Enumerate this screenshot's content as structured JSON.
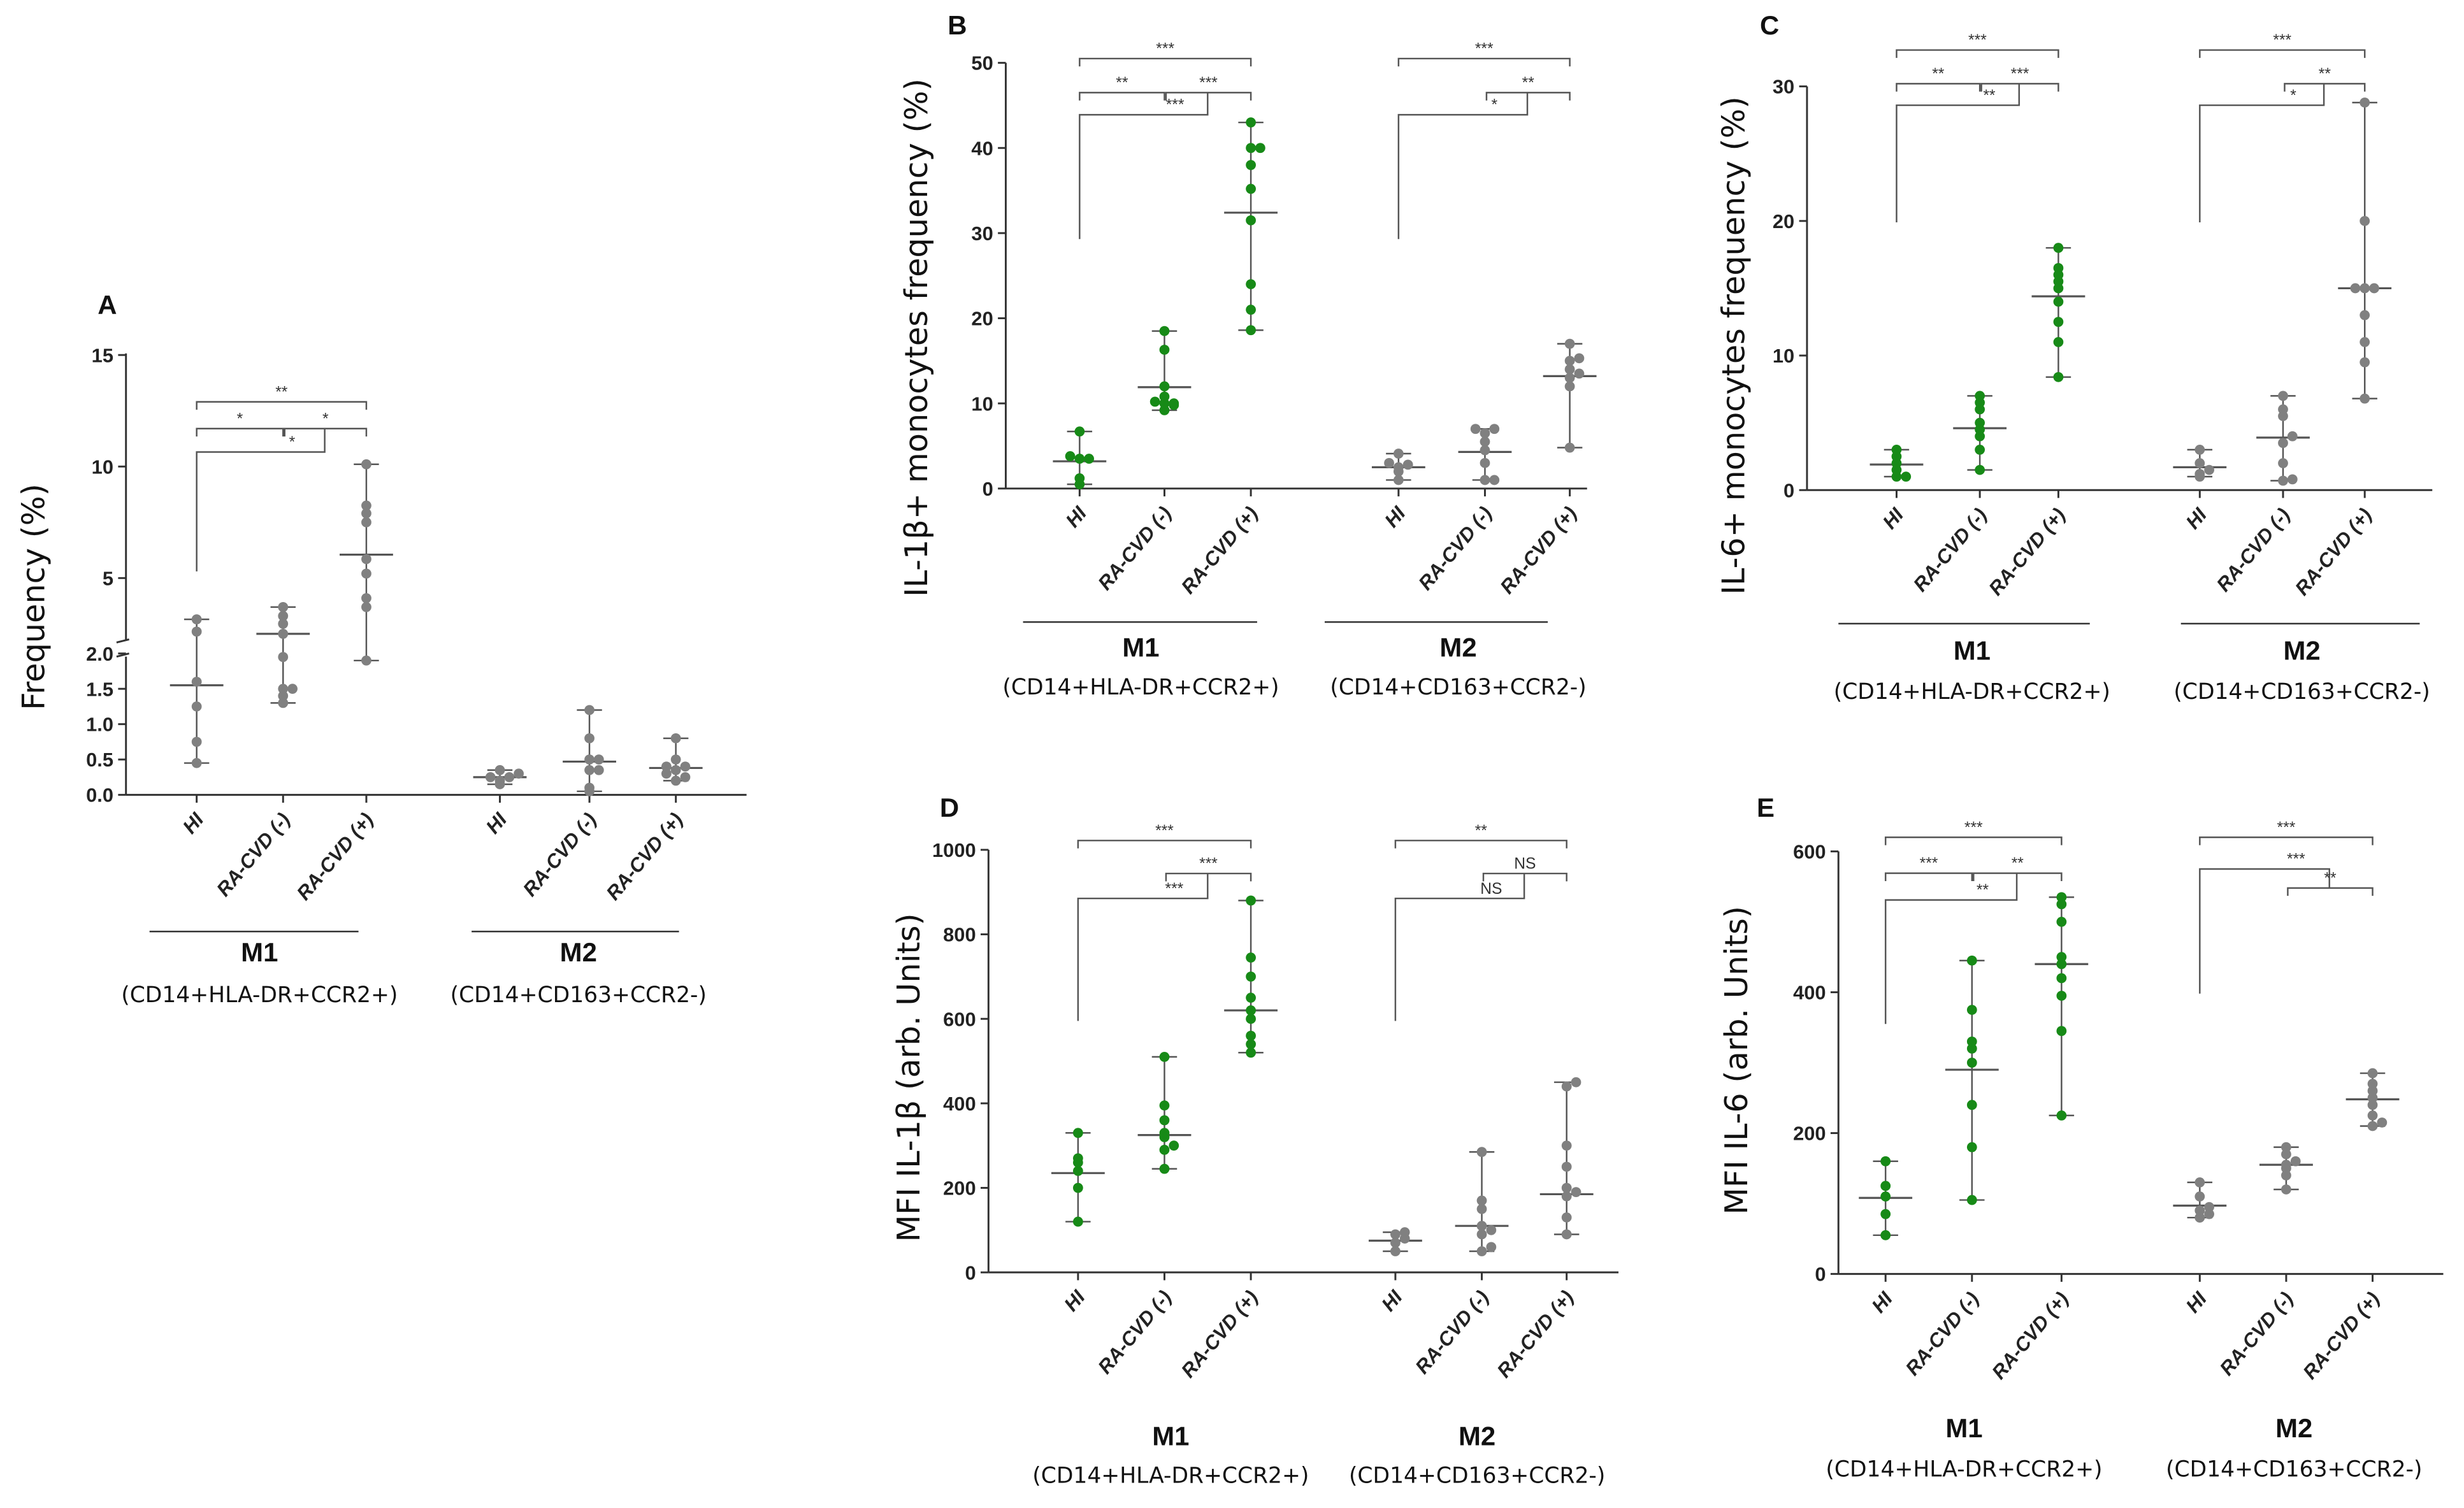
{
  "chart_data": [
    {
      "type": "scatter",
      "panel": "A",
      "ylabel": "Frequency (%)",
      "ylim": [
        0,
        15
      ],
      "axis_break": [
        2,
        2
      ],
      "yticks": [
        0,
        0.5,
        1,
        1.5,
        2,
        5,
        10,
        15
      ],
      "ytick_labels": [
        "0.0",
        "0.5",
        "1.0",
        "1.5",
        "2.0",
        "5",
        "10",
        "15"
      ],
      "groups": [
        {
          "name": "M1",
          "subtitle": "(CD14+HLA-DR+CCR2+)",
          "color": "#808080",
          "categories": [
            {
              "label": "HI",
              "values": [
                0.45,
                0.75,
                1.25,
                1.6,
                2.6,
                3.15
              ],
              "median": 1.55
            },
            {
              "label": "RA-CVD (-)",
              "values": [
                1.3,
                1.4,
                1.5,
                1.5,
                1.95,
                2.5,
                2.95,
                3.3,
                3.7
              ],
              "median": 2.5
            },
            {
              "label": "RA-CVD (+)",
              "values": [
                1.9,
                3.7,
                4.1,
                5.2,
                5.85,
                7.5,
                7.9,
                8.25,
                10.1
              ],
              "median": 6.05
            }
          ]
        },
        {
          "name": "M2",
          "subtitle": "(CD14+CD163+CCR2-)",
          "color": "#808080",
          "categories": [
            {
              "label": "HI",
              "values": [
                0.15,
                0.2,
                0.25,
                0.25,
                0.3,
                0.35
              ],
              "median": 0.25
            },
            {
              "label": "RA-CVD (-)",
              "values": [
                0.05,
                0.1,
                0.35,
                0.35,
                0.5,
                0.5,
                0.8,
                1.2
              ],
              "median": 0.47
            },
            {
              "label": "RA-CVD (+)",
              "values": [
                0.2,
                0.25,
                0.3,
                0.35,
                0.4,
                0.4,
                0.5,
                0.8
              ],
              "median": 0.38
            }
          ]
        }
      ],
      "significance": [
        {
          "group": 0,
          "type": "pair",
          "from": 0,
          "to": 2,
          "y": 12.9,
          "label": "**"
        },
        {
          "group": 0,
          "type": "pair",
          "from": 0,
          "to": 1,
          "y": 11.7,
          "label": "*"
        },
        {
          "group": 0,
          "type": "pair",
          "from": 1,
          "to": 2,
          "y": 11.7,
          "label": "*"
        },
        {
          "group": 0,
          "type": "nested",
          "from": 0,
          "to_pair": [
            1,
            2
          ],
          "pair_y": 11.7,
          "y": 10.65,
          "leg_from": 5.3,
          "label": "*"
        }
      ]
    },
    {
      "type": "scatter",
      "panel": "B",
      "ylabel": "IL-1β+ monocytes frequency  (%)",
      "ylim": [
        0,
        50
      ],
      "yticks": [
        0,
        10,
        20,
        30,
        40,
        50
      ],
      "ytick_labels": [
        "0",
        "10",
        "20",
        "30",
        "40",
        "50"
      ],
      "groups": [
        {
          "name": "M1",
          "subtitle": "(CD14+HLA-DR+CCR2+)",
          "color": "#178a17",
          "categories": [
            {
              "label": "HI",
              "values": [
                0.5,
                1.2,
                3.5,
                3.5,
                3.8,
                6.7
              ],
              "median": 3.2
            },
            {
              "label": "RA-CVD (-)",
              "values": [
                9.2,
                9.8,
                10,
                10,
                10.2,
                10.8,
                12,
                16.3,
                18.5
              ],
              "median": 11.9
            },
            {
              "label": "RA-CVD (+)",
              "values": [
                18.6,
                21,
                24,
                31.5,
                35.2,
                38,
                40,
                40,
                43
              ],
              "median": 32.4
            }
          ]
        },
        {
          "name": "M2",
          "subtitle": "(CD14+CD163+CCR2-)",
          "color": "#808080",
          "categories": [
            {
              "label": "HI",
              "values": [
                1,
                2,
                2.5,
                2.8,
                3,
                4.1
              ],
              "median": 2.5
            },
            {
              "label": "RA-CVD (-)",
              "values": [
                1,
                1,
                3,
                4.5,
                5.5,
                6.5,
                7,
                7
              ],
              "median": 4.3
            },
            {
              "label": "RA-CVD (+)",
              "values": [
                4.8,
                12,
                13,
                13.5,
                14,
                15,
                15.3,
                17
              ],
              "median": 13.2
            }
          ]
        }
      ],
      "significance": [
        {
          "group": 0,
          "type": "pair",
          "from": 0,
          "to": 2,
          "y": 50.5,
          "label": "***"
        },
        {
          "group": 0,
          "type": "pair",
          "from": 0,
          "to": 1,
          "y": 46.5,
          "label": "**"
        },
        {
          "group": 0,
          "type": "pair",
          "from": 1,
          "to": 2,
          "y": 46.5,
          "label": "***"
        },
        {
          "group": 0,
          "type": "nested",
          "from": 0,
          "to_pair": [
            1,
            2
          ],
          "pair_y": 46.5,
          "y": 43.9,
          "leg_from": 29.3,
          "label": "***"
        },
        {
          "group": 1,
          "type": "pair",
          "from": 0,
          "to": 2,
          "y": 50.5,
          "label": "***"
        },
        {
          "group": 1,
          "type": "pair",
          "from": 1,
          "to": 2,
          "y": 46.5,
          "label": "**"
        },
        {
          "group": 1,
          "type": "nested",
          "from": 0,
          "to_pair": [
            1,
            2
          ],
          "pair_y": 46.5,
          "y": 43.9,
          "leg_from": 29.3,
          "label": "*"
        }
      ]
    },
    {
      "type": "scatter",
      "panel": "C",
      "ylabel": "IL-6+ monocytes frequency  (%)",
      "ylim": [
        0,
        30
      ],
      "yticks": [
        0,
        10,
        20,
        30
      ],
      "ytick_labels": [
        "0",
        "10",
        "20",
        "30"
      ],
      "groups": [
        {
          "name": "M1",
          "subtitle": "(CD14+HLA-DR+CCR2+)",
          "color": "#178a17",
          "categories": [
            {
              "label": "HI",
              "values": [
                1,
                1,
                1.5,
                2,
                2.5,
                3
              ],
              "median": 1.9
            },
            {
              "label": "RA-CVD (-)",
              "values": [
                1.5,
                3,
                4,
                4.5,
                5,
                6,
                6.5,
                7
              ],
              "median": 4.6
            },
            {
              "label": "RA-CVD (+)",
              "values": [
                8.4,
                11,
                12.5,
                14,
                15,
                15.5,
                16,
                16.5,
                18
              ],
              "median": 14.4
            }
          ]
        },
        {
          "name": "M2",
          "subtitle": "(CD14+CD163+CCR2-)",
          "color": "#808080",
          "categories": [
            {
              "label": "HI",
              "values": [
                1,
                1.2,
                1.5,
                2,
                3
              ],
              "median": 1.7
            },
            {
              "label": "RA-CVD (-)",
              "values": [
                0.7,
                0.8,
                2,
                3.5,
                4,
                5.5,
                6,
                7
              ],
              "median": 3.9
            },
            {
              "label": "RA-CVD (+)",
              "values": [
                6.8,
                9.5,
                11,
                13,
                15,
                15,
                15,
                20,
                28.8
              ],
              "median": 15
            }
          ]
        }
      ],
      "significance": [
        {
          "group": 0,
          "type": "pair",
          "from": 0,
          "to": 2,
          "y": 32.7,
          "label": "***"
        },
        {
          "group": 0,
          "type": "pair",
          "from": 0,
          "to": 1,
          "y": 30.2,
          "label": "**"
        },
        {
          "group": 0,
          "type": "pair",
          "from": 1,
          "to": 2,
          "y": 30.2,
          "label": "***"
        },
        {
          "group": 0,
          "type": "nested",
          "from": 0,
          "to_pair": [
            1,
            2
          ],
          "pair_y": 30.2,
          "y": 28.6,
          "leg_from": 19.9,
          "label": "**"
        },
        {
          "group": 1,
          "type": "pair",
          "from": 0,
          "to": 2,
          "y": 32.7,
          "label": "***"
        },
        {
          "group": 1,
          "type": "pair",
          "from": 1,
          "to": 2,
          "y": 30.2,
          "label": "**"
        },
        {
          "group": 1,
          "type": "nested",
          "from": 0,
          "to_pair": [
            1,
            2
          ],
          "pair_y": 30.2,
          "y": 28.6,
          "leg_from": 19.9,
          "label": "*"
        }
      ]
    },
    {
      "type": "scatter",
      "panel": "D",
      "ylabel": "MFI IL-1β (arb. Units)",
      "ylim": [
        0,
        1000
      ],
      "yticks": [
        0,
        200,
        400,
        600,
        800,
        1000
      ],
      "ytick_labels": [
        "0",
        "200",
        "400",
        "600",
        "800",
        "1000"
      ],
      "groups": [
        {
          "name": "M1",
          "subtitle": "(CD14+HLA-DR+CCR2+)",
          "color": "#178a17",
          "categories": [
            {
              "label": "HI",
              "values": [
                120,
                200,
                240,
                260,
                270,
                330
              ],
              "median": 235
            },
            {
              "label": "RA-CVD (-)",
              "values": [
                245,
                290,
                300,
                320,
                330,
                360,
                395,
                510
              ],
              "median": 325
            },
            {
              "label": "RA-CVD (+)",
              "values": [
                520,
                540,
                560,
                600,
                620,
                650,
                700,
                745,
                880
              ],
              "median": 620
            }
          ]
        },
        {
          "name": "M2",
          "subtitle": "(CD14+CD163+CCR2-)",
          "color": "#808080",
          "categories": [
            {
              "label": "HI",
              "values": [
                50,
                70,
                80,
                90,
                95
              ],
              "median": 75
            },
            {
              "label": "RA-CVD (-)",
              "values": [
                50,
                60,
                90,
                100,
                110,
                150,
                170,
                285
              ],
              "median": 110
            },
            {
              "label": "RA-CVD (+)",
              "values": [
                90,
                130,
                180,
                190,
                200,
                250,
                300,
                440,
                450
              ],
              "median": 185
            }
          ]
        }
      ],
      "significance": [
        {
          "group": 0,
          "type": "pair",
          "from": 0,
          "to": 2,
          "y": 1022,
          "label": "***"
        },
        {
          "group": 0,
          "type": "pair",
          "from": 1,
          "to": 2,
          "y": 944,
          "label": "***"
        },
        {
          "group": 0,
          "type": "nested",
          "from": 0,
          "to_pair": [
            1,
            2
          ],
          "pair_y": 944,
          "y": 885,
          "leg_from": 595,
          "label": "***"
        },
        {
          "group": 1,
          "type": "pair",
          "from": 0,
          "to": 2,
          "y": 1022,
          "label": "**"
        },
        {
          "group": 1,
          "type": "pair",
          "from": 1,
          "to": 2,
          "y": 944,
          "label": "NS"
        },
        {
          "group": 1,
          "type": "nested",
          "from": 0,
          "to_pair": [
            1,
            2
          ],
          "pair_y": 944,
          "y": 885,
          "leg_from": 595,
          "label": "NS"
        }
      ]
    },
    {
      "type": "scatter",
      "panel": "E",
      "ylabel": "MFI IL-6 (arb. Units)",
      "ylim": [
        0,
        600
      ],
      "yticks": [
        0,
        200,
        400,
        600
      ],
      "ytick_labels": [
        "0",
        "200",
        "400",
        "600"
      ],
      "groups": [
        {
          "name": "M1",
          "subtitle": "(CD14+HLA-DR+CCR2+)",
          "color": "#178a17",
          "categories": [
            {
              "label": "HI",
              "values": [
                55,
                85,
                110,
                125,
                160
              ],
              "median": 108
            },
            {
              "label": "RA-CVD (-)",
              "values": [
                105,
                180,
                240,
                300,
                320,
                330,
                375,
                445
              ],
              "median": 290
            },
            {
              "label": "RA-CVD (+)",
              "values": [
                225,
                345,
                395,
                420,
                440,
                450,
                500,
                525,
                535
              ],
              "median": 440
            }
          ]
        },
        {
          "name": "M2",
          "subtitle": "(CD14+CD163+CCR2-)",
          "color": "#808080",
          "categories": [
            {
              "label": "HI",
              "values": [
                80,
                85,
                90,
                95,
                110,
                130
              ],
              "median": 97
            },
            {
              "label": "RA-CVD (-)",
              "values": [
                120,
                140,
                150,
                155,
                160,
                170,
                180
              ],
              "median": 155
            },
            {
              "label": "RA-CVD (+)",
              "values": [
                210,
                215,
                225,
                240,
                250,
                260,
                270,
                285
              ],
              "median": 248
            }
          ]
        }
      ],
      "significance": [
        {
          "group": 0,
          "type": "pair",
          "from": 0,
          "to": 2,
          "y": 620,
          "label": "***"
        },
        {
          "group": 0,
          "type": "pair",
          "from": 0,
          "to": 1,
          "y": 569,
          "label": "***"
        },
        {
          "group": 0,
          "type": "pair",
          "from": 1,
          "to": 2,
          "y": 569,
          "label": "**"
        },
        {
          "group": 0,
          "type": "nested",
          "from": 0,
          "to_pair": [
            1,
            2
          ],
          "pair_y": 569,
          "y": 531,
          "leg_from": 355,
          "label": "**"
        },
        {
          "group": 1,
          "type": "pair",
          "from": 0,
          "to": 2,
          "y": 620,
          "label": "***"
        },
        {
          "group": 1,
          "type": "nested",
          "from": 0,
          "to_pair": [
            1,
            2
          ],
          "pair_y": 548,
          "y": 575,
          "leg_from": 398,
          "label": "***"
        },
        {
          "group": 1,
          "type": "pair",
          "from": 1,
          "to": 2,
          "y": 548,
          "label": "**"
        }
      ]
    }
  ]
}
